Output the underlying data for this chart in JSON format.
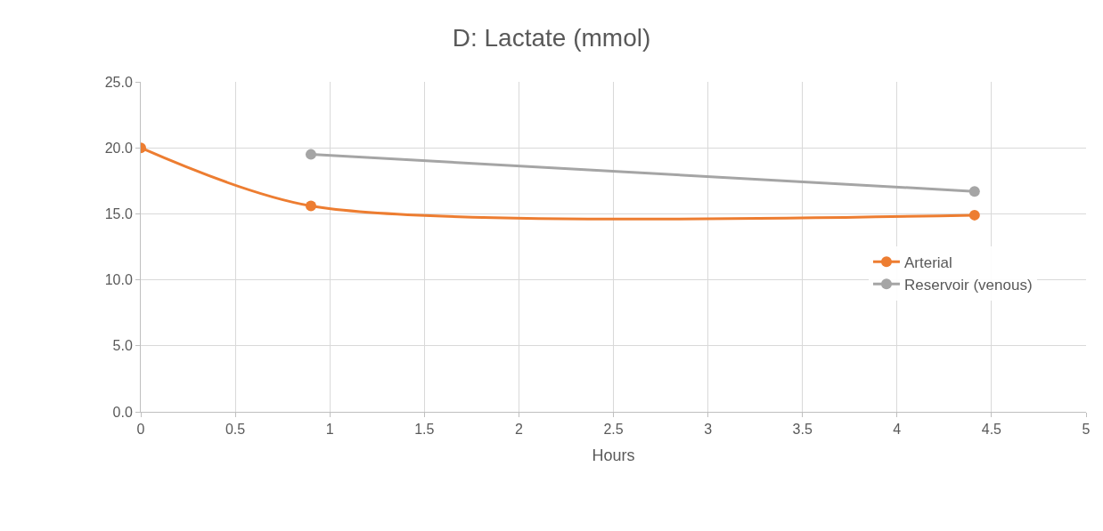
{
  "chart_data": {
    "type": "line",
    "title": "D: Lactate (mmol)",
    "xlabel": "Hours",
    "series": [
      {
        "name": "Arterial",
        "color": "#ed7d31",
        "x": [
          0,
          0.9,
          4.41
        ],
        "values": [
          20.0,
          15.6,
          14.9
        ]
      },
      {
        "name": "Reservoir (venous)",
        "color": "#a5a5a5",
        "x": [
          0.9,
          4.41
        ],
        "values": [
          19.5,
          16.7
        ]
      }
    ],
    "xlim": [
      0,
      5
    ],
    "xticks": [
      0,
      0.5,
      1,
      1.5,
      2,
      2.5,
      3,
      3.5,
      4,
      4.5,
      5
    ],
    "ylim": [
      0,
      25
    ],
    "yticks": [
      {
        "value": 0,
        "label": "0.0"
      },
      {
        "value": 5,
        "label": "5.0"
      },
      {
        "value": 10,
        "label": "10.0"
      },
      {
        "value": 15,
        "label": "15.0"
      },
      {
        "value": 20,
        "label": "20.0"
      },
      {
        "value": 25,
        "label": "25.0"
      }
    ],
    "grid": true,
    "legend": "right",
    "marker": "circle",
    "line_style": "solid"
  }
}
